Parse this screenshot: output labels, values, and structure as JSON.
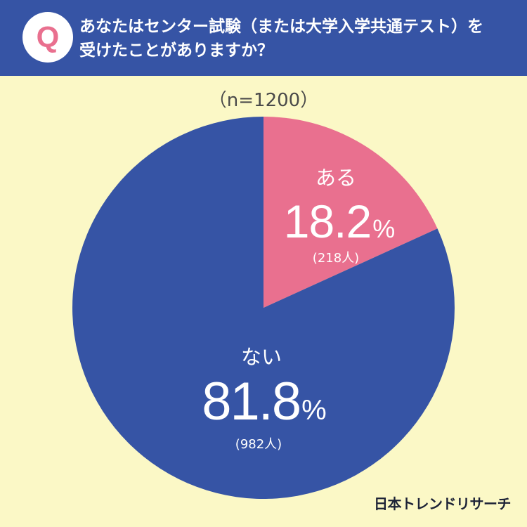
{
  "header": {
    "badge": "Q",
    "question_line1": "あなたはセンター試験（または大学入学共通テスト）を",
    "question_line2": "受けたことがありますか？"
  },
  "chart_data": {
    "type": "pie",
    "sample_label": "（n=1200）",
    "unit": "%",
    "slices": [
      {
        "label": "ある",
        "value": 18.2,
        "count_label": "(218人)",
        "color": "#e9708f"
      },
      {
        "label": "ない",
        "value": 81.8,
        "count_label": "(982人)",
        "color": "#3654a5"
      }
    ]
  },
  "branding": {
    "logo": "日本トレンドリサーチ"
  },
  "colors": {
    "page_bg": "#fbf8c6",
    "header_bg": "#3654a5",
    "badge_bg": "#ffffff",
    "badge_fg": "#e9708f",
    "text_dark": "#4a4a4a",
    "logo_color": "#1c2236"
  }
}
